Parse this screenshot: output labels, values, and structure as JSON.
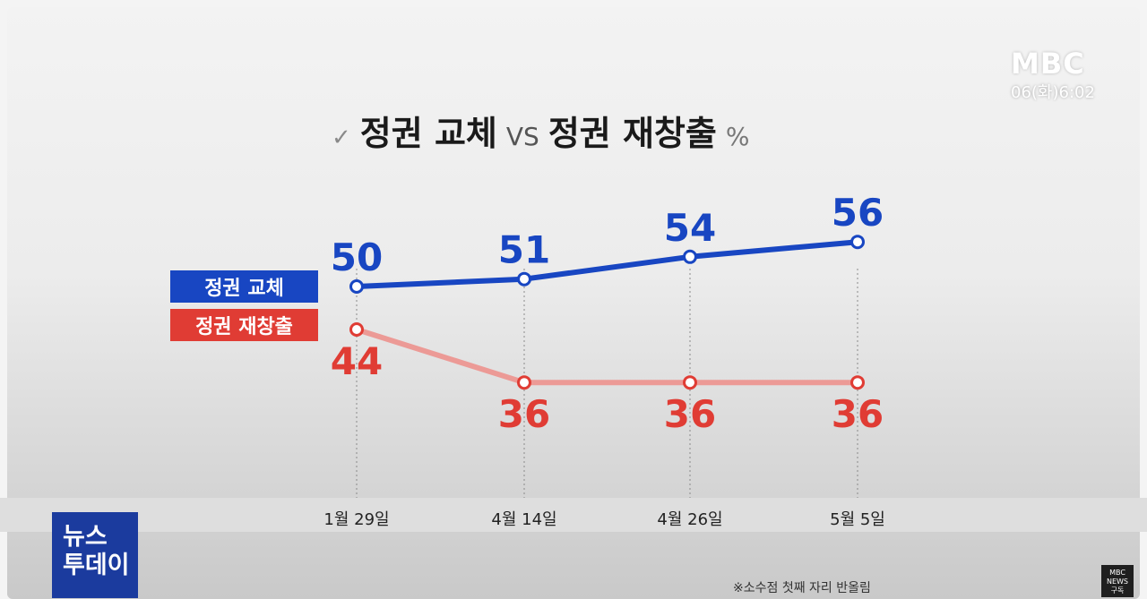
{
  "broadcaster": {
    "logo_text": "MBC",
    "time": "06(화)6:02",
    "program_logo_line1": "뉴스",
    "program_logo_line2": "투데이",
    "badge_line1": "MBC",
    "badge_line2": "NEWS",
    "badge_line3": "구독"
  },
  "footnote": "※소수점 첫째 자리 반올림",
  "chart_data": {
    "type": "line",
    "title": {
      "check": "✓",
      "left": "정권 교체",
      "vs": "VS",
      "right": "정권 재창출",
      "unit": "%"
    },
    "categories": [
      "1월 29일",
      "4월 14일",
      "4월 26일",
      "5월 5일"
    ],
    "series": [
      {
        "name": "정권 교체",
        "values": [
          50,
          51,
          54,
          56
        ],
        "color": "#1846c2"
      },
      {
        "name": "정권 재창출",
        "values": [
          44,
          36,
          36,
          36
        ],
        "color": "#e03c34"
      }
    ],
    "legend_placement": "left",
    "grid": false
  }
}
